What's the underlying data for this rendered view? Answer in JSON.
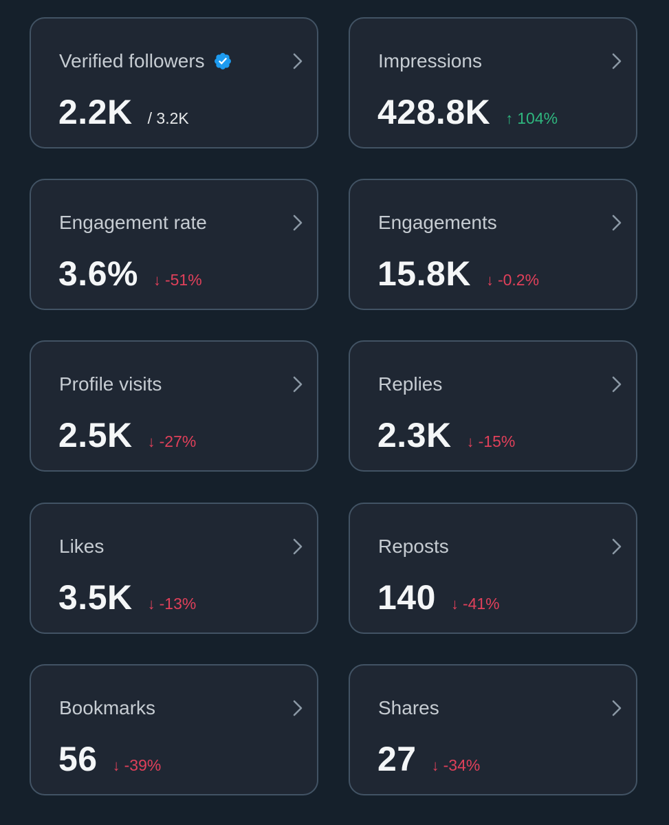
{
  "cards": [
    {
      "title": "Verified followers",
      "value": "2.2K",
      "sub": "/ 3.2K",
      "verified": true
    },
    {
      "title": "Impressions",
      "value": "428.8K",
      "delta": "104%",
      "direction": "up"
    },
    {
      "title": "Engagement rate",
      "value": "3.6%",
      "delta": "-51%",
      "direction": "down"
    },
    {
      "title": "Engagements",
      "value": "15.8K",
      "delta": "-0.2%",
      "direction": "down"
    },
    {
      "title": "Profile visits",
      "value": "2.5K",
      "delta": "-27%",
      "direction": "down"
    },
    {
      "title": "Replies",
      "value": "2.3K",
      "delta": "-15%",
      "direction": "down"
    },
    {
      "title": "Likes",
      "value": "3.5K",
      "delta": "-13%",
      "direction": "down"
    },
    {
      "title": "Reposts",
      "value": "140",
      "delta": "-41%",
      "direction": "down"
    },
    {
      "title": "Bookmarks",
      "value": "56",
      "delta": "-39%",
      "direction": "down"
    },
    {
      "title": "Shares",
      "value": "27",
      "delta": "-34%",
      "direction": "down"
    }
  ],
  "icons": {
    "verified": "verified-badge-icon",
    "chevron": "chevron-right-icon",
    "up": "arrow-up-icon",
    "down": "arrow-down-icon"
  },
  "colors": {
    "background": "#15202b",
    "card_border": "#425364",
    "verified_blue": "#1d9bf0",
    "positive": "#2fb77f",
    "negative": "#e0405a"
  }
}
